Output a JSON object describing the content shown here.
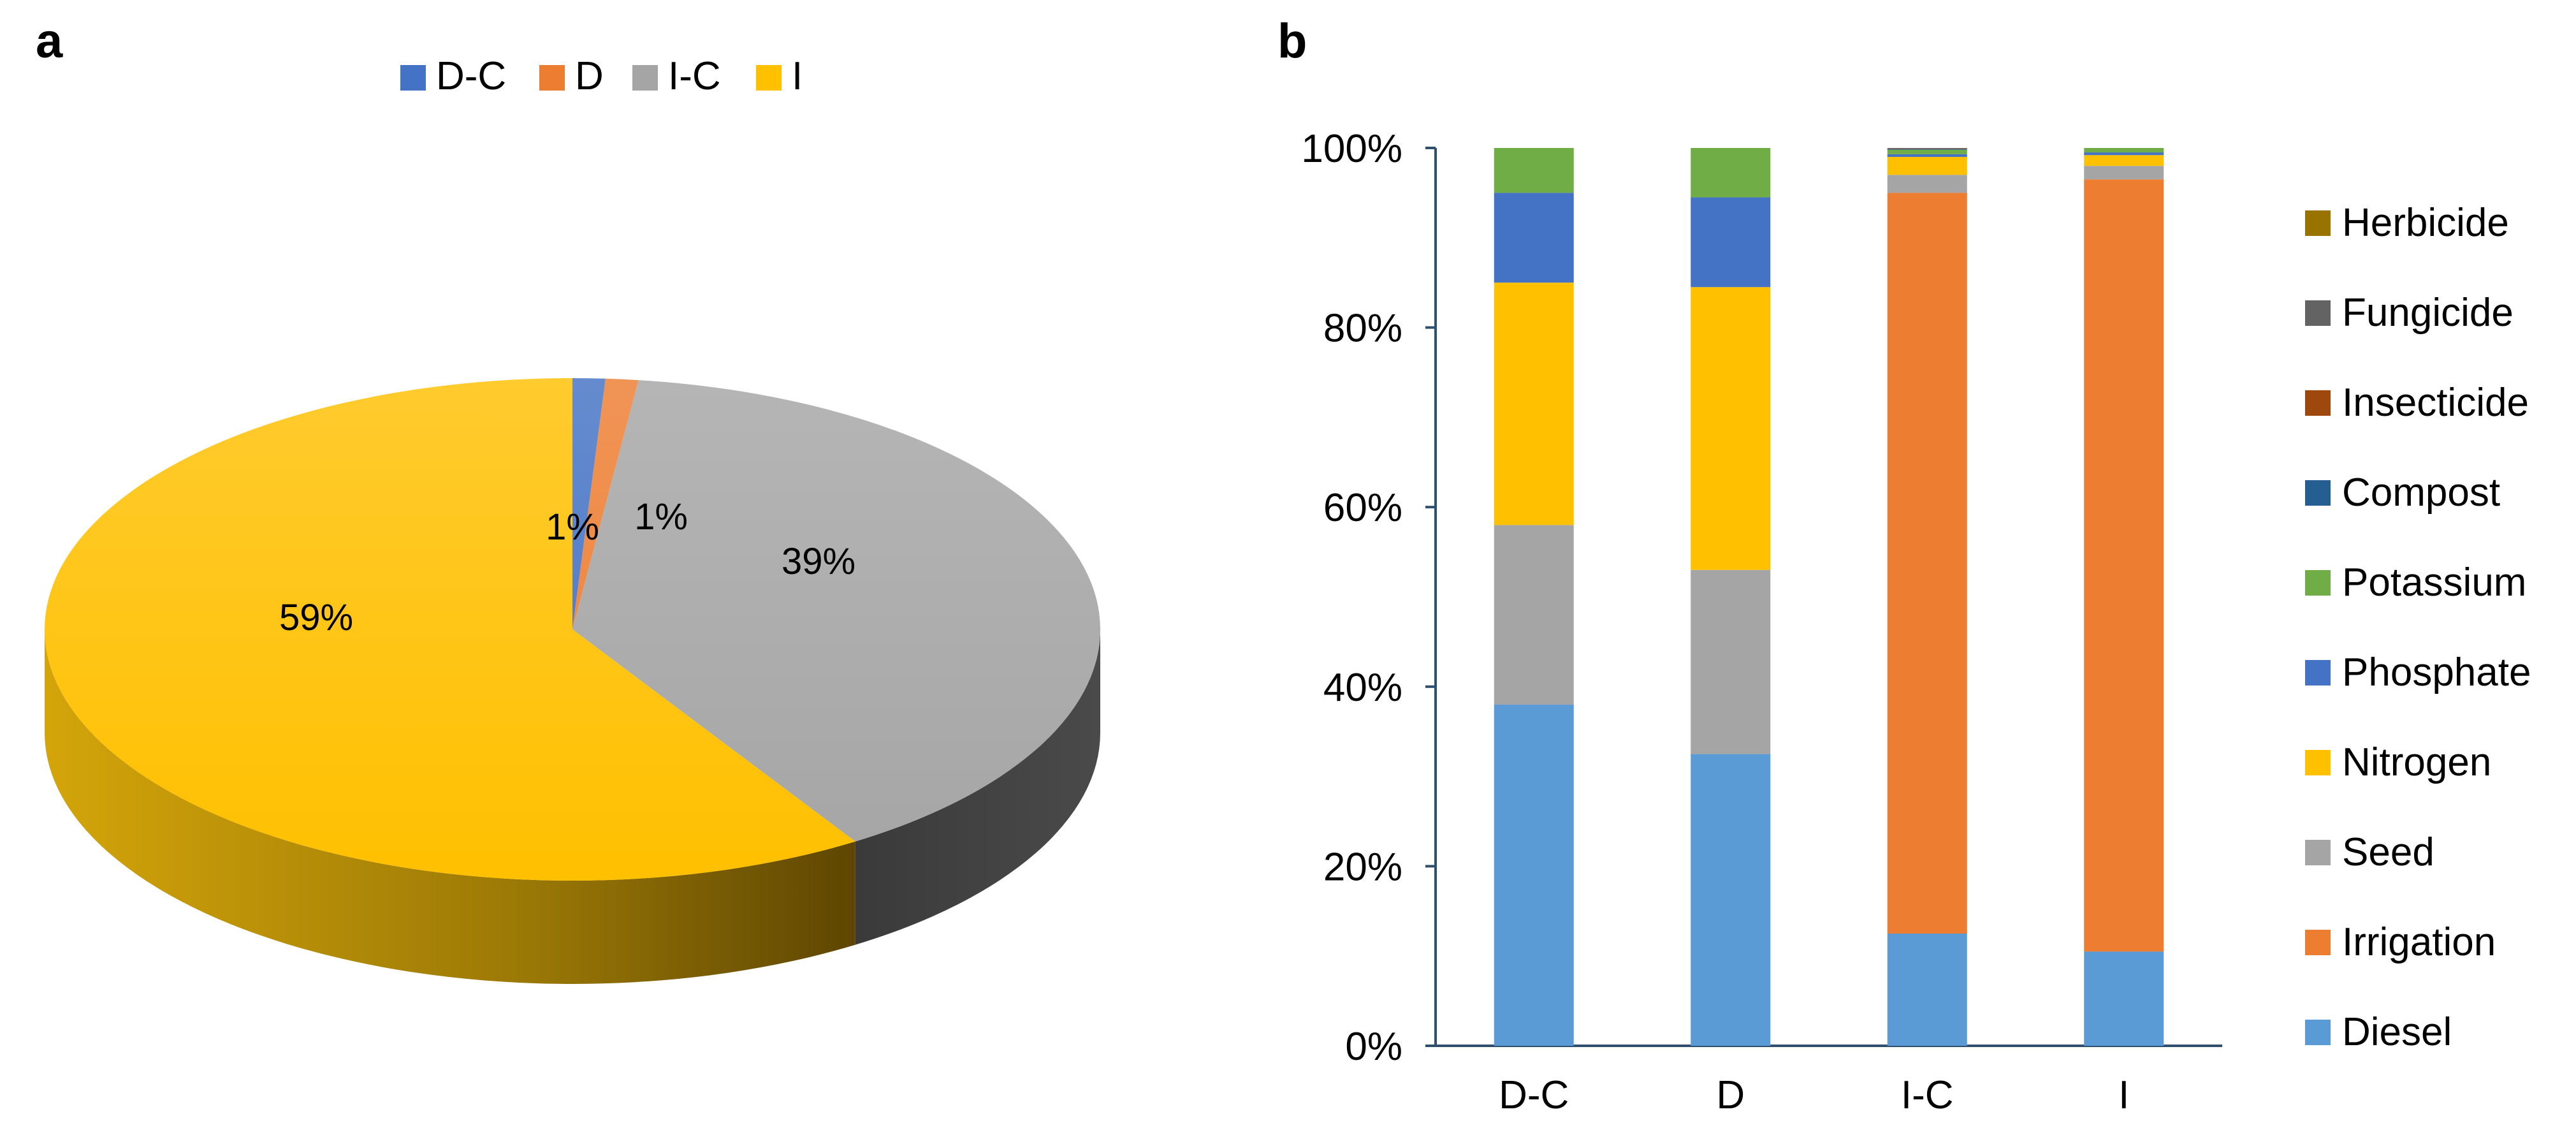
{
  "panels": {
    "a": {
      "label": "a"
    },
    "b": {
      "label": "b"
    }
  },
  "chart_data": [
    {
      "type": "pie",
      "style": "3d",
      "panel": "a",
      "legend_position": "top",
      "slices": [
        {
          "name": "D-C",
          "value": 1,
          "label": "1%",
          "color": "#4472C4"
        },
        {
          "name": "D",
          "value": 1,
          "label": "1%",
          "color": "#ED7D31"
        },
        {
          "name": "I-C",
          "value": 39,
          "label": "39%",
          "color": "#A5A5A5"
        },
        {
          "name": "I",
          "value": 59,
          "label": "59%",
          "color": "#FFC000"
        }
      ]
    },
    {
      "type": "bar",
      "stacked": true,
      "percent_stacked": true,
      "panel": "b",
      "legend_position": "right",
      "categories": [
        "D-C",
        "D",
        "I-C",
        "I"
      ],
      "ylim": [
        0,
        100
      ],
      "yticks": [
        "0%",
        "20%",
        "40%",
        "60%",
        "80%",
        "100%"
      ],
      "series": [
        {
          "name": "Diesel",
          "color": "#5B9BD5",
          "values": [
            38,
            32.5,
            12.5,
            10.5
          ]
        },
        {
          "name": "Irrigation",
          "color": "#ED7D31",
          "values": [
            0,
            0,
            82.5,
            86
          ]
        },
        {
          "name": "Seed",
          "color": "#A5A5A5",
          "values": [
            20,
            20.5,
            2,
            1.5
          ]
        },
        {
          "name": "Nitrogen",
          "color": "#FFC000",
          "values": [
            27,
            31.5,
            2,
            1.2
          ]
        },
        {
          "name": "Phosphate",
          "color": "#4472C4",
          "values": [
            10,
            10,
            0.3,
            0.3
          ]
        },
        {
          "name": "Potassium",
          "color": "#70AD47",
          "values": [
            5,
            5.5,
            0.5,
            0.5
          ]
        },
        {
          "name": "Compost",
          "color": "#255E91",
          "values": [
            0,
            0,
            0.1,
            0
          ]
        },
        {
          "name": "Insecticide",
          "color": "#9E480E",
          "values": [
            0,
            0,
            0.05,
            0
          ]
        },
        {
          "name": "Fungicide",
          "color": "#636363",
          "values": [
            0,
            0,
            0.05,
            0
          ]
        },
        {
          "name": "Herbicide",
          "color": "#997300",
          "values": [
            0,
            0,
            0,
            0
          ]
        }
      ]
    }
  ]
}
